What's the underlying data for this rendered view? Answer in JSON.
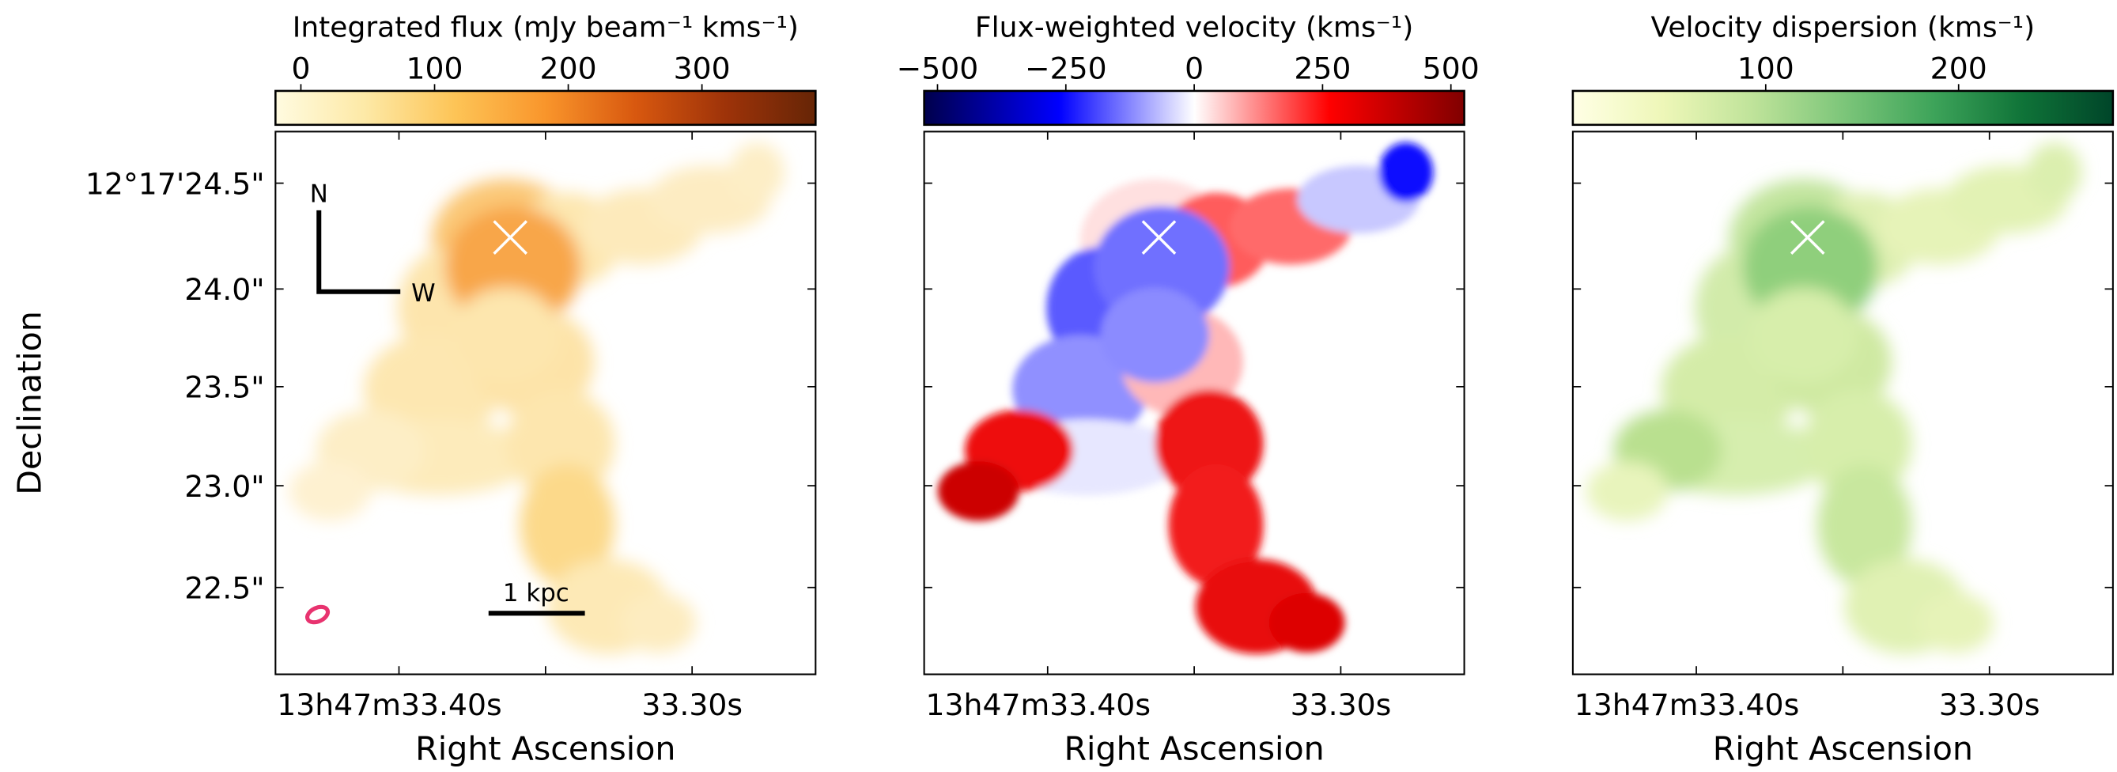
{
  "chart_data": [
    {
      "type": "heatmap",
      "colorbar": {
        "label": "Integrated flux (mJy beam⁻¹ kms⁻¹)",
        "ticks": [
          0,
          100,
          200,
          300
        ],
        "tick_labels": [
          "0",
          "100",
          "200",
          "300"
        ],
        "range": [
          -19,
          385
        ],
        "colors": [
          "#fffbe0",
          "#fde9a6",
          "#fdc456",
          "#f9952b",
          "#d8580f",
          "#9e3309",
          "#662506"
        ],
        "placement": "top"
      },
      "xlabel": "Right Ascension",
      "ylabel": "Declination",
      "x_tick_labels": [
        "13h47m33.40s",
        "33.30s"
      ],
      "y_tick_labels": [
        "12°17'24.5\"",
        "24.0\"",
        "23.5\"",
        "23.0\"",
        "22.5\""
      ],
      "annotations": {
        "north": "N",
        "west": "W",
        "scale_bar": "1 kpc",
        "marker": "x",
        "beam_color": "#e8336f"
      }
    },
    {
      "type": "heatmap",
      "colorbar": {
        "label": "Flux-weighted velocity (kms⁻¹)",
        "ticks": [
          -500,
          -250,
          0,
          250,
          500
        ],
        "tick_labels": [
          "−500",
          "−250",
          "0",
          "250",
          "500"
        ],
        "range": [
          -526,
          526
        ],
        "colors": [
          "#00004c",
          "#0000ff",
          "#ffffff",
          "#ff0000",
          "#800000"
        ],
        "placement": "top"
      },
      "xlabel": "Right Ascension",
      "x_tick_labels": [
        "13h47m33.40s",
        "33.30s"
      ],
      "annotations": {
        "marker": "x"
      }
    },
    {
      "type": "heatmap",
      "colorbar": {
        "label": "Velocity dispersion (kms⁻¹)",
        "ticks": [
          100,
          200
        ],
        "tick_labels": [
          "100",
          "200"
        ],
        "range": [
          0,
          280
        ],
        "colors": [
          "#ffffe5",
          "#eef7b8",
          "#bfe39a",
          "#7dc67a",
          "#3ea45a",
          "#0f7338",
          "#004529"
        ],
        "placement": "top"
      },
      "xlabel": "Right Ascension",
      "x_tick_labels": [
        "13h47m33.40s",
        "33.30s"
      ],
      "annotations": {
        "marker": "x"
      }
    }
  ]
}
